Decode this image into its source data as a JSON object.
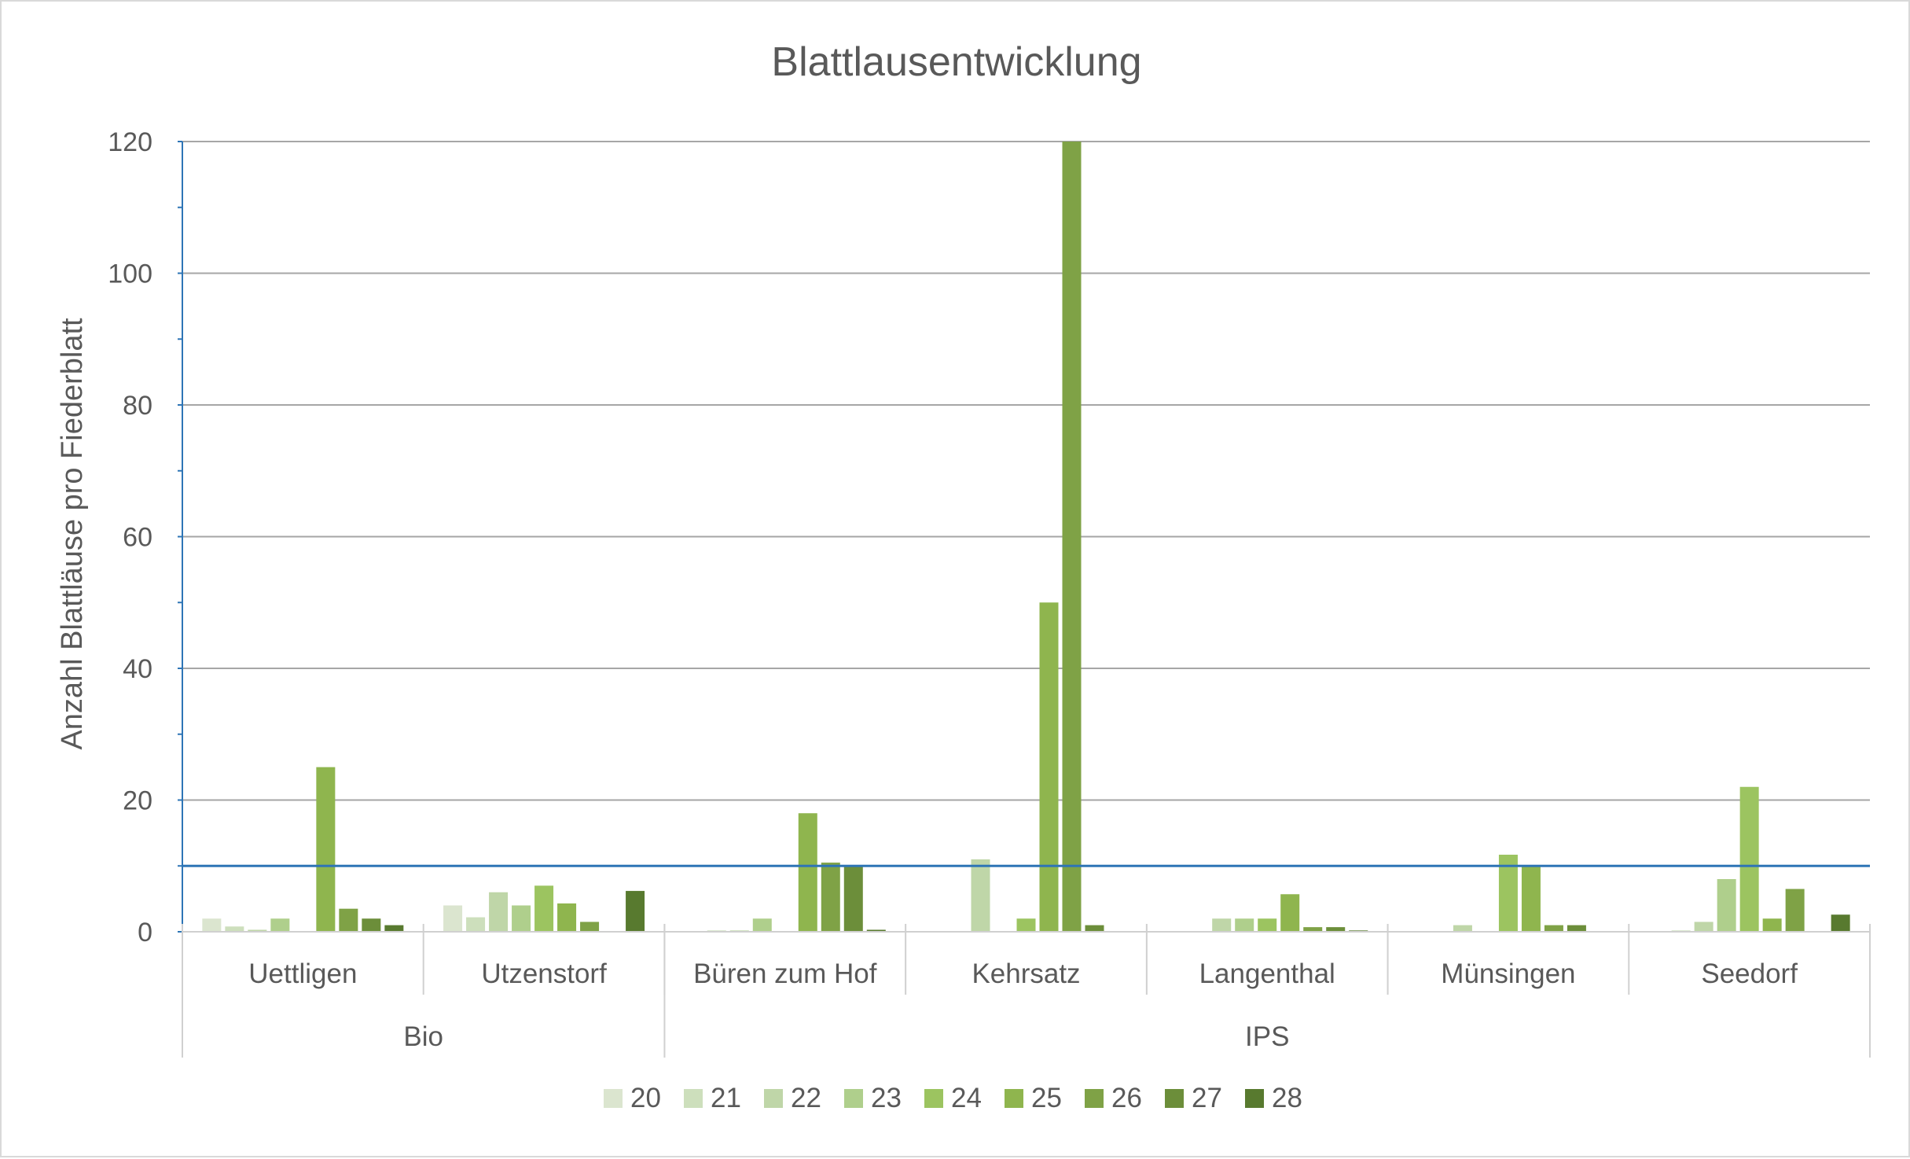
{
  "chart_data": {
    "type": "bar",
    "title": "Blattlausentwicklung",
    "xlabel": "",
    "ylabel": "Anzahl Blattläuse pro Fiederblatt",
    "ylim": [
      0,
      120
    ],
    "yticks": [
      0,
      20,
      40,
      60,
      80,
      100,
      120
    ],
    "grid": true,
    "legend_position": "bottom",
    "threshold_line": {
      "value": 10,
      "color": "#2e75b6"
    },
    "groups": [
      {
        "name": "Bio",
        "categories": [
          "Uettligen",
          "Utzenstorf"
        ]
      },
      {
        "name": "IPS",
        "categories": [
          "Büren zum Hof",
          "Kehrsatz",
          "Langenthal",
          "Münsingen",
          "Seedorf"
        ]
      }
    ],
    "categories": [
      "Uettligen",
      "Utzenstorf",
      "Büren zum Hof",
      "Kehrsatz",
      "Langenthal",
      "Münsingen",
      "Seedorf"
    ],
    "series": [
      {
        "name": "20",
        "color": "#dbe5cf",
        "values": [
          2,
          4,
          0,
          0,
          0,
          0,
          0
        ]
      },
      {
        "name": "21",
        "color": "#cddfbc",
        "values": [
          0.8,
          2.2,
          0.2,
          0,
          0,
          0,
          0.2
        ]
      },
      {
        "name": "22",
        "color": "#bfd6a8",
        "values": [
          0.3,
          6,
          0.2,
          11,
          2,
          1,
          1.5
        ]
      },
      {
        "name": "23",
        "color": "#afcf8c",
        "values": [
          2,
          4,
          2,
          0,
          2,
          0,
          8
        ]
      },
      {
        "name": "24",
        "color": "#9cc460",
        "values": [
          0,
          7,
          0,
          2,
          2,
          11.7,
          22
        ]
      },
      {
        "name": "25",
        "color": "#8fb54e",
        "values": [
          25,
          4.3,
          18,
          50,
          5.7,
          10,
          2
        ]
      },
      {
        "name": "26",
        "color": "#7fa246",
        "values": [
          3.5,
          1.5,
          10.5,
          120,
          0.7,
          1,
          6.5
        ]
      },
      {
        "name": "27",
        "color": "#6c8e3a",
        "values": [
          2,
          0,
          10,
          1,
          0.7,
          1,
          0
        ]
      },
      {
        "name": "28",
        "color": "#587a2f",
        "values": [
          1,
          6.2,
          0.3,
          0,
          0.2,
          0,
          2.6
        ]
      }
    ]
  }
}
